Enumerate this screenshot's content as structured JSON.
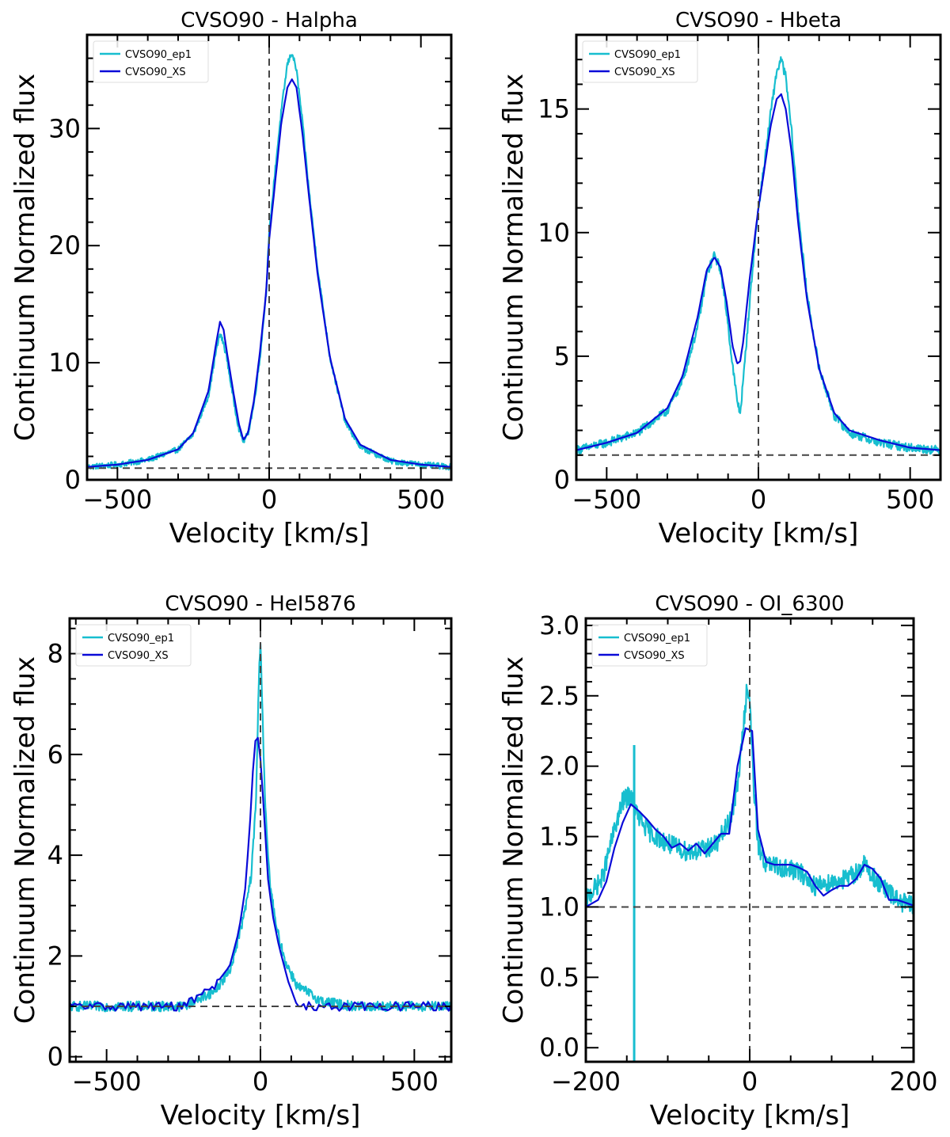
{
  "colors": {
    "ep1": "#17becf",
    "xs": "#0a0ad8",
    "ref": "#444444"
  },
  "chart_data": [
    {
      "type": "line",
      "title": "CVSO90 - Halpha",
      "xlabel": "Velocity [km/s]",
      "ylabel": "Continuum Normalized flux",
      "xlim": [
        -600,
        600
      ],
      "ylim": [
        0,
        38
      ],
      "xticks": [
        -500,
        0,
        500
      ],
      "yticks": [
        0,
        10,
        20,
        30
      ],
      "ytick_labels": [
        "0",
        "10",
        "20",
        "30"
      ],
      "hline": 1,
      "vline": 0,
      "legend": {
        "position": "top-left",
        "entries": [
          "CVSO90_ep1",
          "CVSO90_XS"
        ]
      },
      "series": [
        {
          "name": "CVSO90_ep1",
          "style": "noisy",
          "noise": 0.25,
          "x": [
            -600,
            -500,
            -400,
            -300,
            -250,
            -200,
            -175,
            -162,
            -150,
            -140,
            -120,
            -100,
            -85,
            -70,
            -50,
            -30,
            -10,
            0,
            20,
            40,
            60,
            75,
            90,
            110,
            130,
            160,
            200,
            250,
            300,
            400,
            500,
            600
          ],
          "y": [
            1.1,
            1.3,
            1.7,
            2.6,
            3.9,
            7.2,
            11.0,
            12.5,
            11.6,
            10.5,
            7.2,
            4.4,
            3.3,
            3.9,
            6.5,
            10.5,
            16.0,
            21.0,
            26.5,
            31.5,
            35.5,
            36.5,
            35.0,
            30.5,
            25.0,
            18.0,
            10.5,
            5.0,
            2.8,
            1.6,
            1.3,
            1.1
          ]
        },
        {
          "name": "CVSO90_XS",
          "style": "smooth",
          "x": [
            -600,
            -500,
            -400,
            -300,
            -250,
            -200,
            -175,
            -162,
            -150,
            -140,
            -120,
            -100,
            -85,
            -70,
            -50,
            -30,
            -10,
            0,
            20,
            40,
            60,
            75,
            90,
            110,
            130,
            160,
            200,
            250,
            300,
            400,
            500,
            600
          ],
          "y": [
            1.1,
            1.3,
            1.7,
            2.6,
            4.0,
            7.6,
            11.6,
            13.5,
            12.8,
            11.0,
            7.8,
            4.8,
            3.4,
            4.0,
            6.8,
            11.0,
            16.0,
            20.5,
            25.5,
            30.5,
            33.5,
            34.2,
            33.5,
            29.5,
            24.5,
            17.5,
            10.5,
            5.2,
            3.0,
            1.7,
            1.3,
            1.1
          ]
        }
      ]
    },
    {
      "type": "line",
      "title": "CVSO90 - Hbeta",
      "xlabel": "Velocity [km/s]",
      "ylabel": "Continuum Normalized flux",
      "xlim": [
        -600,
        600
      ],
      "ylim": [
        0,
        18
      ],
      "xticks": [
        -500,
        0,
        500
      ],
      "yticks": [
        0,
        5,
        10,
        15
      ],
      "ytick_labels": [
        "0",
        "5",
        "10",
        "15"
      ],
      "hline": 1,
      "vline": 0,
      "legend": {
        "position": "top-left",
        "entries": [
          "CVSO90_ep1",
          "CVSO90_XS"
        ]
      },
      "series": [
        {
          "name": "CVSO90_ep1",
          "style": "noisy",
          "noise": 0.18,
          "x": [
            -600,
            -500,
            -400,
            -300,
            -250,
            -200,
            -170,
            -145,
            -125,
            -105,
            -85,
            -70,
            -60,
            -50,
            -30,
            -10,
            0,
            20,
            40,
            60,
            75,
            90,
            110,
            130,
            160,
            200,
            250,
            300,
            400,
            500,
            600
          ],
          "y": [
            1.2,
            1.5,
            1.9,
            2.8,
            4.0,
            6.2,
            8.3,
            9.1,
            8.5,
            6.8,
            4.6,
            3.2,
            2.7,
            4.0,
            7.0,
            9.8,
            11.0,
            12.8,
            14.8,
            16.5,
            17.0,
            16.3,
            14.0,
            11.0,
            7.5,
            4.5,
            2.6,
            1.9,
            1.5,
            1.3,
            1.2
          ]
        },
        {
          "name": "CVSO90_XS",
          "style": "smooth",
          "x": [
            -600,
            -500,
            -400,
            -300,
            -250,
            -200,
            -170,
            -145,
            -125,
            -105,
            -85,
            -70,
            -60,
            -50,
            -30,
            -10,
            0,
            20,
            40,
            60,
            75,
            90,
            110,
            130,
            160,
            200,
            250,
            300,
            400,
            500,
            600
          ],
          "y": [
            1.2,
            1.5,
            1.9,
            2.9,
            4.2,
            6.6,
            8.5,
            9.0,
            8.6,
            7.2,
            5.4,
            4.7,
            4.8,
            5.6,
            8.0,
            10.0,
            11.0,
            12.6,
            14.3,
            15.4,
            15.6,
            15.0,
            13.2,
            10.5,
            7.3,
            4.5,
            2.7,
            2.0,
            1.6,
            1.3,
            1.2
          ]
        }
      ]
    },
    {
      "type": "line",
      "title": "CVSO90 - HeI5876",
      "xlabel": "Velocity [km/s]",
      "ylabel": "Continuum Normalized flux",
      "xlim": [
        -620,
        620
      ],
      "ylim": [
        -0.1,
        8.7
      ],
      "xticks": [
        -500,
        0,
        500
      ],
      "yticks": [
        0,
        2,
        4,
        6,
        8
      ],
      "ytick_labels": [
        "0",
        "2",
        "4",
        "6",
        "8"
      ],
      "hline": 1,
      "vline": 0,
      "legend": {
        "position": "top-left",
        "entries": [
          "CVSO90_ep1",
          "CVSO90_XS"
        ]
      },
      "series": [
        {
          "name": "CVSO90_ep1",
          "style": "noisy",
          "noise": 0.1,
          "x": [
            -620,
            -400,
            -250,
            -150,
            -100,
            -70,
            -50,
            -30,
            -15,
            -5,
            0,
            5,
            15,
            30,
            50,
            80,
            120,
            200,
            300,
            620
          ],
          "y": [
            1.0,
            1.0,
            1.0,
            1.3,
            1.7,
            2.4,
            2.9,
            3.6,
            5.0,
            7.5,
            8.3,
            7.2,
            5.0,
            3.5,
            2.6,
            1.9,
            1.4,
            1.1,
            1.0,
            1.0
          ]
        },
        {
          "name": "CVSO90_XS",
          "style": "jagged",
          "noise": 0.09,
          "x": [
            -620,
            -400,
            -250,
            -150,
            -100,
            -70,
            -50,
            -35,
            -20,
            -10,
            -5,
            0,
            10,
            25,
            40,
            60,
            90,
            120,
            200,
            300,
            620
          ],
          "y": [
            1.0,
            1.0,
            1.0,
            1.4,
            1.8,
            2.5,
            3.3,
            4.5,
            6.2,
            6.4,
            6.2,
            5.9,
            5.0,
            3.5,
            2.8,
            2.2,
            1.5,
            1.0,
            1.0,
            1.0,
            1.0
          ]
        }
      ]
    },
    {
      "type": "line",
      "title": "CVSO90 - OI_6300",
      "xlabel": "Velocity [km/s]",
      "ylabel": "Continuum Normalized flux",
      "xlim": [
        -200,
        200
      ],
      "ylim": [
        -0.1,
        3.05
      ],
      "xticks": [
        -200,
        0,
        200
      ],
      "xtick_labels": [
        "−200",
        "0",
        "200"
      ],
      "yticks": [
        0.0,
        0.5,
        1.0,
        1.5,
        2.0,
        2.5,
        3.0
      ],
      "ytick_labels": [
        "0.0",
        "0.5",
        "1.0",
        "1.5",
        "2.0",
        "2.5",
        "3.0"
      ],
      "hline": 1,
      "vline": 0,
      "legend": {
        "position": "top-left",
        "entries": [
          "CVSO90_ep1",
          "CVSO90_XS"
        ]
      },
      "series": [
        {
          "name": "CVSO90_ep1",
          "style": "noisy",
          "noise": 0.07,
          "spike_at": -141,
          "spike_low": -0.1,
          "spike_high": 2.15,
          "x": [
            -200,
            -180,
            -165,
            -155,
            -145,
            -135,
            -120,
            -100,
            -80,
            -60,
            -40,
            -25,
            -15,
            -8,
            -3,
            0,
            5,
            10,
            20,
            40,
            60,
            80,
            100,
            120,
            140,
            160,
            180,
            200
          ],
          "y": [
            1.05,
            1.2,
            1.55,
            1.75,
            1.8,
            1.62,
            1.52,
            1.45,
            1.4,
            1.4,
            1.45,
            1.6,
            1.85,
            2.25,
            2.6,
            2.45,
            1.85,
            1.45,
            1.3,
            1.28,
            1.25,
            1.15,
            1.18,
            1.2,
            1.3,
            1.15,
            1.05,
            1.0
          ]
        },
        {
          "name": "CVSO90_XS",
          "style": "polyline",
          "x": [
            -200,
            -185,
            -175,
            -165,
            -155,
            -145,
            -135,
            -125,
            -115,
            -105,
            -95,
            -85,
            -75,
            -65,
            -55,
            -45,
            -35,
            -25,
            -15,
            -5,
            3,
            10,
            20,
            30,
            40,
            50,
            60,
            70,
            80,
            90,
            100,
            110,
            120,
            130,
            140,
            150,
            160,
            170,
            180,
            190,
            200
          ],
          "y": [
            1.0,
            1.05,
            1.18,
            1.42,
            1.6,
            1.73,
            1.68,
            1.62,
            1.55,
            1.5,
            1.42,
            1.45,
            1.4,
            1.45,
            1.38,
            1.45,
            1.52,
            1.52,
            2.0,
            2.27,
            2.25,
            1.55,
            1.32,
            1.3,
            1.3,
            1.3,
            1.28,
            1.25,
            1.15,
            1.08,
            1.12,
            1.15,
            1.15,
            1.2,
            1.3,
            1.27,
            1.2,
            1.05,
            1.05,
            1.03,
            1.01
          ]
        }
      ]
    }
  ]
}
